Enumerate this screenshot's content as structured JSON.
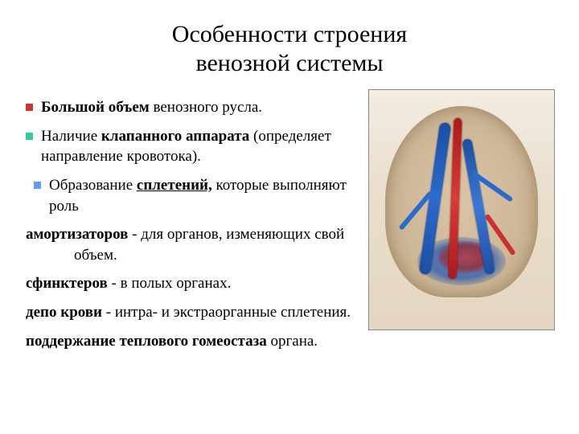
{
  "title_line1": "Особенности строения",
  "title_line2": "венозной системы",
  "bullets": [
    {
      "pre": "",
      "bold": "Большой объем",
      "post": " венозного русла."
    },
    {
      "pre": "Наличие ",
      "bold": "клапанного аппарата",
      "post": " (определяет направление кровотока)."
    },
    {
      "pre": "Образование ",
      "bold": "сплетений,",
      "post": " которые выполняют роль"
    }
  ],
  "paras": [
    {
      "bold": "амортизаторов",
      "rest": " -  для органов, изменяющих свой объем."
    },
    {
      "bold": "сфинктеров",
      "rest": " - в полых органах."
    },
    {
      "bold": "депо крови",
      "rest": " - интра- и экстраорганные сплетения."
    },
    {
      "bold": "поддержание теплового гомеостаза",
      "rest": " органа."
    }
  ],
  "colors": {
    "bullet1": "#cc3333",
    "bullet2": "#33cc99",
    "bullet3": "#6699ff"
  }
}
